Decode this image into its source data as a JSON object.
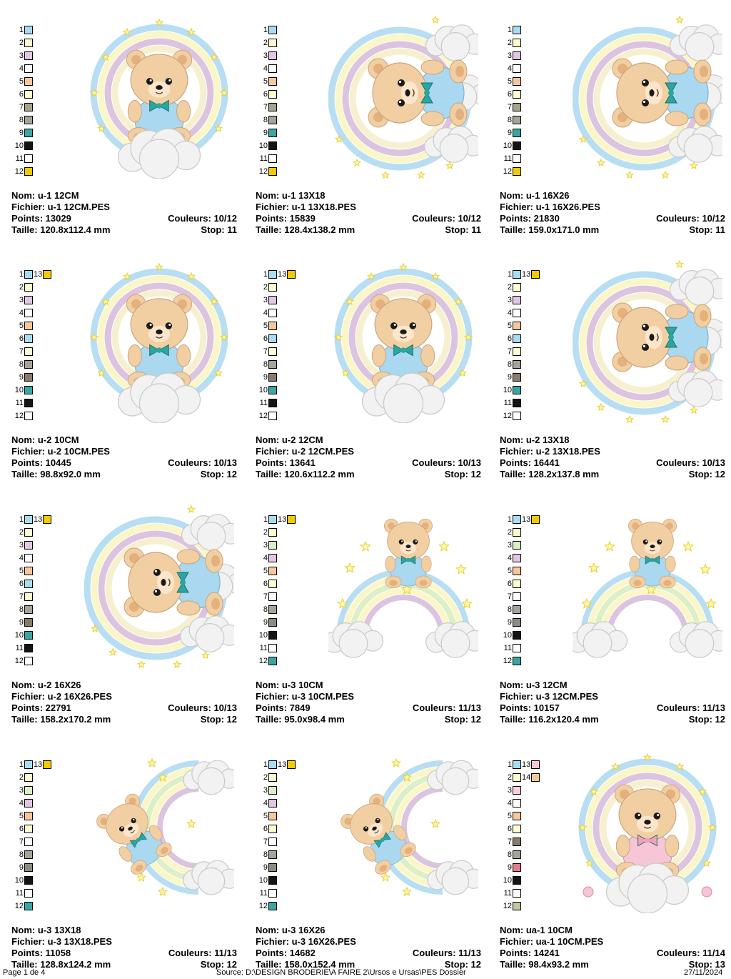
{
  "designs": [
    {
      "nom": "Nom: u-1 12CM",
      "fichier": "Fichier: u-1 12CM.PES",
      "points": "Points: 13029",
      "couleurs": "Couleurs: 10/12",
      "taille": "Taille: 120.8x112.4 mm",
      "stop": "Stop: 11",
      "motif": "ring",
      "pose": "sit",
      "bow": "#2aa6a0",
      "outfit": "#aad8f0",
      "colors": [
        {
          "n": "1",
          "c": "#a9dcf3"
        },
        {
          "n": "2",
          "c": "#fdfccf"
        },
        {
          "n": "3",
          "c": "#e3c6e1"
        },
        {
          "n": "4",
          "c": "#ffffff"
        },
        {
          "n": "5",
          "c": "#f8c69c"
        },
        {
          "n": "6",
          "c": "#fdfdd2"
        },
        {
          "n": "7",
          "c": "#a4a48c"
        },
        {
          "n": "8",
          "c": "#a6a39a"
        },
        {
          "n": "9",
          "c": "#3aa5a5"
        },
        {
          "n": "10",
          "c": "#141414"
        },
        {
          "n": "11",
          "c": "#ffffff"
        },
        {
          "n": "12",
          "c": "#f4c900"
        }
      ]
    },
    {
      "nom": "Nom: u-1 13X18",
      "fichier": "Fichier: u-1 13X18.PES",
      "points": "Points: 15839",
      "couleurs": "Couleurs: 10/12",
      "taille": "Taille: 128.4x138.2 mm",
      "stop": "Stop: 11",
      "motif": "ring-cloud",
      "pose": "lie",
      "bow": "#2aa6a0",
      "outfit": "#aad8f0",
      "colors": [
        {
          "n": "1",
          "c": "#a9dcf3"
        },
        {
          "n": "2",
          "c": "#fdfccf"
        },
        {
          "n": "3",
          "c": "#e3c6e1"
        },
        {
          "n": "4",
          "c": "#ffffff"
        },
        {
          "n": "5",
          "c": "#f8c69c"
        },
        {
          "n": "6",
          "c": "#fdfdd2"
        },
        {
          "n": "7",
          "c": "#a4a48c"
        },
        {
          "n": "8",
          "c": "#a6a39a"
        },
        {
          "n": "9",
          "c": "#3aa5a5"
        },
        {
          "n": "10",
          "c": "#141414"
        },
        {
          "n": "11",
          "c": "#ffffff"
        },
        {
          "n": "12",
          "c": "#f4c900"
        }
      ]
    },
    {
      "nom": "Nom: u-1 16X26",
      "fichier": "Fichier: u-1 16X26.PES",
      "points": "Points: 21830",
      "couleurs": "Couleurs: 10/12",
      "taille": "Taille: 159.0x171.0 mm",
      "stop": "Stop: 11",
      "motif": "ring-cloud",
      "pose": "lie",
      "bow": "#2aa6a0",
      "outfit": "#aad8f0",
      "colors": [
        {
          "n": "1",
          "c": "#a9dcf3"
        },
        {
          "n": "2",
          "c": "#fdfccf"
        },
        {
          "n": "3",
          "c": "#e3c6e1"
        },
        {
          "n": "4",
          "c": "#ffffff"
        },
        {
          "n": "5",
          "c": "#f8c69c"
        },
        {
          "n": "6",
          "c": "#fdfdd2"
        },
        {
          "n": "7",
          "c": "#a4a48c"
        },
        {
          "n": "8",
          "c": "#a6a39a"
        },
        {
          "n": "9",
          "c": "#3aa5a5"
        },
        {
          "n": "10",
          "c": "#141414"
        },
        {
          "n": "11",
          "c": "#ffffff"
        },
        {
          "n": "12",
          "c": "#f4c900"
        }
      ]
    },
    {
      "nom": "Nom: u-2 10CM",
      "fichier": "Fichier: u-2 10CM.PES",
      "points": "Points: 10445",
      "couleurs": "Couleurs: 10/13",
      "taille": "Taille: 98.8x92.0 mm",
      "stop": "Stop: 12",
      "motif": "ring",
      "pose": "sit",
      "bow": "#2aa6a0",
      "outfit": "#aad8f0",
      "colors": [
        {
          "n": "1",
          "c": "#a9dcf3",
          "n2": "13",
          "c2": "#f4c900"
        },
        {
          "n": "2",
          "c": "#fdfccf"
        },
        {
          "n": "3",
          "c": "#e3c6e1"
        },
        {
          "n": "4",
          "c": "#ffffff"
        },
        {
          "n": "5",
          "c": "#f8c69c"
        },
        {
          "n": "6",
          "c": "#a9dcf3"
        },
        {
          "n": "7",
          "c": "#fdfdd2"
        },
        {
          "n": "8",
          "c": "#a6a39a"
        },
        {
          "n": "9",
          "c": "#8b7a6a"
        },
        {
          "n": "10",
          "c": "#3aa5a5"
        },
        {
          "n": "11",
          "c": "#141414"
        },
        {
          "n": "12",
          "c": "#ffffff"
        }
      ]
    },
    {
      "nom": "Nom: u-2 12CM",
      "fichier": "Fichier: u-2 12CM.PES",
      "points": "Points: 13641",
      "couleurs": "Couleurs: 10/13",
      "taille": "Taille: 120.6x112.2 mm",
      "stop": "Stop: 12",
      "motif": "ring",
      "pose": "sit",
      "bow": "#2aa6a0",
      "outfit": "#aad8f0",
      "colors": [
        {
          "n": "1",
          "c": "#a9dcf3",
          "n2": "13",
          "c2": "#f4c900"
        },
        {
          "n": "2",
          "c": "#fdfccf"
        },
        {
          "n": "3",
          "c": "#e3c6e1"
        },
        {
          "n": "4",
          "c": "#ffffff"
        },
        {
          "n": "5",
          "c": "#f8c69c"
        },
        {
          "n": "6",
          "c": "#a9dcf3"
        },
        {
          "n": "7",
          "c": "#fdfdd2"
        },
        {
          "n": "8",
          "c": "#a6a39a"
        },
        {
          "n": "9",
          "c": "#8b7a6a"
        },
        {
          "n": "10",
          "c": "#3aa5a5"
        },
        {
          "n": "11",
          "c": "#141414"
        },
        {
          "n": "12",
          "c": "#ffffff"
        }
      ]
    },
    {
      "nom": "Nom: u-2 13X18",
      "fichier": "Fichier: u-2 13X18.PES",
      "points": "Points: 16441",
      "couleurs": "Couleurs: 10/13",
      "taille": "Taille: 128.2x137.8 mm",
      "stop": "Stop: 12",
      "motif": "ring-cloud",
      "pose": "lie",
      "bow": "#2aa6a0",
      "outfit": "#aad8f0",
      "colors": [
        {
          "n": "1",
          "c": "#a9dcf3",
          "n2": "13",
          "c2": "#f4c900"
        },
        {
          "n": "2",
          "c": "#fdfccf"
        },
        {
          "n": "3",
          "c": "#e3c6e1"
        },
        {
          "n": "4",
          "c": "#ffffff"
        },
        {
          "n": "5",
          "c": "#f8c69c"
        },
        {
          "n": "6",
          "c": "#a9dcf3"
        },
        {
          "n": "7",
          "c": "#fdfdd2"
        },
        {
          "n": "8",
          "c": "#a6a39a"
        },
        {
          "n": "9",
          "c": "#8b7a6a"
        },
        {
          "n": "10",
          "c": "#3aa5a5"
        },
        {
          "n": "11",
          "c": "#141414"
        },
        {
          "n": "12",
          "c": "#ffffff"
        }
      ]
    },
    {
      "nom": "Nom: u-2 16X26",
      "fichier": "Fichier: u-2 16X26.PES",
      "points": "Points: 22791",
      "couleurs": "Couleurs: 10/13",
      "taille": "Taille: 158.2x170.2 mm",
      "stop": "Stop: 12",
      "motif": "ring-cloud",
      "pose": "lie",
      "bow": "#2aa6a0",
      "outfit": "#aad8f0",
      "colors": [
        {
          "n": "1",
          "c": "#a9dcf3",
          "n2": "13",
          "c2": "#f4c900"
        },
        {
          "n": "2",
          "c": "#fdfccf"
        },
        {
          "n": "3",
          "c": "#e3c6e1"
        },
        {
          "n": "4",
          "c": "#ffffff"
        },
        {
          "n": "5",
          "c": "#f8c69c"
        },
        {
          "n": "6",
          "c": "#a9dcf3"
        },
        {
          "n": "7",
          "c": "#fdfdd2"
        },
        {
          "n": "8",
          "c": "#a6a39a"
        },
        {
          "n": "9",
          "c": "#8b7a6a"
        },
        {
          "n": "10",
          "c": "#3aa5a5"
        },
        {
          "n": "11",
          "c": "#141414"
        },
        {
          "n": "12",
          "c": "#ffffff"
        }
      ]
    },
    {
      "nom": "Nom: u-3 10CM",
      "fichier": "Fichier: u-3 10CM.PES",
      "points": "Points: 7849",
      "couleurs": "Couleurs: 11/13",
      "taille": "Taille: 95.0x98.4 mm",
      "stop": "Stop: 12",
      "motif": "arch",
      "pose": "peek",
      "bow": "#2aa6a0",
      "outfit": "#aad8f0",
      "colors": [
        {
          "n": "1",
          "c": "#a9dcf3",
          "n2": "13",
          "c2": "#f4c900"
        },
        {
          "n": "2",
          "c": "#fdfccf"
        },
        {
          "n": "3",
          "c": "#dcefc6"
        },
        {
          "n": "4",
          "c": "#e3c6e1"
        },
        {
          "n": "5",
          "c": "#f8c69c"
        },
        {
          "n": "6",
          "c": "#fdfdd2"
        },
        {
          "n": "7",
          "c": "#ffffff"
        },
        {
          "n": "8",
          "c": "#a6a39a"
        },
        {
          "n": "9",
          "c": "#8b8b80"
        },
        {
          "n": "10",
          "c": "#141414"
        },
        {
          "n": "11",
          "c": "#ffffff"
        },
        {
          "n": "12",
          "c": "#3aa5a5"
        }
      ]
    },
    {
      "nom": "Nom: u-3 12CM",
      "fichier": "Fichier: u-3 12CM.PES",
      "points": "Points: 10157",
      "couleurs": "Couleurs: 11/13",
      "taille": "Taille: 116.2x120.4 mm",
      "stop": "Stop: 12",
      "motif": "arch",
      "pose": "peek",
      "bow": "#2aa6a0",
      "outfit": "#aad8f0",
      "colors": [
        {
          "n": "1",
          "c": "#a9dcf3",
          "n2": "13",
          "c2": "#f4c900"
        },
        {
          "n": "2",
          "c": "#fdfccf"
        },
        {
          "n": "3",
          "c": "#dcefc6"
        },
        {
          "n": "4",
          "c": "#e3c6e1"
        },
        {
          "n": "5",
          "c": "#f8c69c"
        },
        {
          "n": "6",
          "c": "#fdfdd2"
        },
        {
          "n": "7",
          "c": "#ffffff"
        },
        {
          "n": "8",
          "c": "#a6a39a"
        },
        {
          "n": "9",
          "c": "#8b8b80"
        },
        {
          "n": "10",
          "c": "#141414"
        },
        {
          "n": "11",
          "c": "#ffffff"
        },
        {
          "n": "12",
          "c": "#3aa5a5"
        }
      ]
    },
    {
      "nom": "Nom: u-3 13X18",
      "fichier": "Fichier: u-3 13X18.PES",
      "points": "Points: 11058",
      "couleurs": "Couleurs: 11/13",
      "taille": "Taille: 128.8x124.2 mm",
      "stop": "Stop: 12",
      "motif": "arch-side",
      "pose": "side",
      "bow": "#2aa6a0",
      "outfit": "#aad8f0",
      "colors": [
        {
          "n": "1",
          "c": "#a9dcf3",
          "n2": "13",
          "c2": "#f4c900"
        },
        {
          "n": "2",
          "c": "#fdfccf"
        },
        {
          "n": "3",
          "c": "#dcefc6"
        },
        {
          "n": "4",
          "c": "#e3c6e1"
        },
        {
          "n": "5",
          "c": "#f8c69c"
        },
        {
          "n": "6",
          "c": "#fdfdd2"
        },
        {
          "n": "7",
          "c": "#ffffff"
        },
        {
          "n": "8",
          "c": "#a6a39a"
        },
        {
          "n": "9",
          "c": "#8b8b80"
        },
        {
          "n": "10",
          "c": "#141414"
        },
        {
          "n": "11",
          "c": "#ffffff"
        },
        {
          "n": "12",
          "c": "#3aa5a5"
        }
      ]
    },
    {
      "nom": "Nom: u-3 16X26",
      "fichier": "Fichier: u-3 16X26.PES",
      "points": "Points: 14682",
      "couleurs": "Couleurs: 11/13",
      "taille": "Taille: 158.0x152.4 mm",
      "stop": "Stop: 12",
      "motif": "arch-side",
      "pose": "side",
      "bow": "#2aa6a0",
      "outfit": "#aad8f0",
      "colors": [
        {
          "n": "1",
          "c": "#a9dcf3",
          "n2": "13",
          "c2": "#f4c900"
        },
        {
          "n": "2",
          "c": "#fdfccf"
        },
        {
          "n": "3",
          "c": "#dcefc6"
        },
        {
          "n": "4",
          "c": "#e3c6e1"
        },
        {
          "n": "5",
          "c": "#f8c69c"
        },
        {
          "n": "6",
          "c": "#fdfdd2"
        },
        {
          "n": "7",
          "c": "#ffffff"
        },
        {
          "n": "8",
          "c": "#a6a39a"
        },
        {
          "n": "9",
          "c": "#8b8b80"
        },
        {
          "n": "10",
          "c": "#141414"
        },
        {
          "n": "11",
          "c": "#ffffff"
        },
        {
          "n": "12",
          "c": "#3aa5a5"
        }
      ]
    },
    {
      "nom": "Nom: ua-1 10CM",
      "fichier": "Fichier: ua-1 10CM.PES",
      "points": "Points: 14241",
      "couleurs": "Couleurs: 11/14",
      "taille": "Taille: 98.4x93.2 mm",
      "stop": "Stop: 13",
      "motif": "ring-flowers",
      "pose": "sit",
      "bow": "#f0a2bd",
      "outfit": "#f7c6d6",
      "colors": [
        {
          "n": "1",
          "c": "#a9dcf3",
          "n2": "13",
          "c2": "#f9c6d9"
        },
        {
          "n": "2",
          "c": "#fdfccf",
          "n2": "14",
          "c2": "#f8c69c"
        },
        {
          "n": "3",
          "c": "#f9cfe1"
        },
        {
          "n": "4",
          "c": "#ffffff"
        },
        {
          "n": "5",
          "c": "#f8c69c"
        },
        {
          "n": "6",
          "c": "#fdfdd2"
        },
        {
          "n": "7",
          "c": "#8b7a6a"
        },
        {
          "n": "8",
          "c": "#a6a39a"
        },
        {
          "n": "9",
          "c": "#e57b86"
        },
        {
          "n": "10",
          "c": "#141414"
        },
        {
          "n": "11",
          "c": "#ffffff"
        },
        {
          "n": "12",
          "c": "#c4c4a6"
        }
      ]
    }
  ],
  "footer": {
    "page": "Page 1 de 4",
    "source": "Source: D:\\DESIGN BRODERIE\\A FAIRE 2\\Ursos e Ursas\\PES Dossier",
    "date": "27/11/2024"
  }
}
